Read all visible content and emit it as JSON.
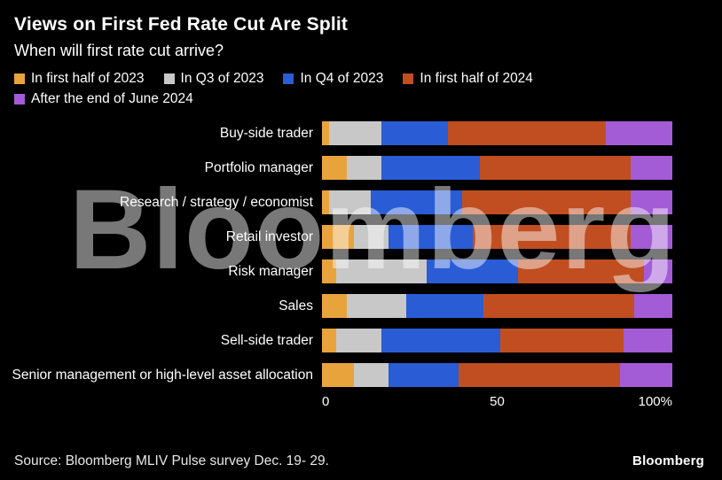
{
  "header": {
    "title": "Views on First Fed Rate Cut Are Split",
    "subtitle": "When will first rate cut arrive?"
  },
  "watermark": "Bloomberg",
  "chart_data": {
    "type": "bar",
    "orientation": "horizontal",
    "stacked": true,
    "unit": "%",
    "title": "Views on First Fed Rate Cut Are Split",
    "subtitle": "When will first rate cut arrive?",
    "legend_position": "top",
    "grid": false,
    "xlim": [
      0,
      100
    ],
    "xticks": [
      "0",
      "50",
      "100%"
    ],
    "categories": [
      "Buy-side trader",
      "Portfolio manager",
      "Research / strategy / economist",
      "Retail investor",
      "Risk manager",
      "Sales",
      "Sell-side trader",
      "Senior management or high-level asset allocation"
    ],
    "series": [
      {
        "name": "In first half of 2023",
        "color": "#E8A33C",
        "values": [
          2,
          7,
          2,
          9,
          4,
          7,
          4,
          9
        ]
      },
      {
        "name": "In Q3 of 2023",
        "color": "#C8C8C8",
        "values": [
          15,
          10,
          12,
          10,
          26,
          17,
          13,
          10
        ]
      },
      {
        "name": "In Q4 of 2023",
        "color": "#2A5CD5",
        "values": [
          19,
          28,
          26,
          24,
          26,
          22,
          34,
          20
        ]
      },
      {
        "name": "In first half of 2024",
        "color": "#C04E21",
        "values": [
          45,
          43,
          48,
          45,
          36,
          43,
          35,
          46
        ]
      },
      {
        "name": "After the end of June 2024",
        "color": "#A35BD6",
        "values": [
          19,
          12,
          12,
          12,
          8,
          11,
          14,
          15
        ]
      }
    ]
  },
  "footer": {
    "source": "Source: Bloomberg MLIV Pulse survey Dec. 19- 29.",
    "logo": "Bloomberg"
  }
}
